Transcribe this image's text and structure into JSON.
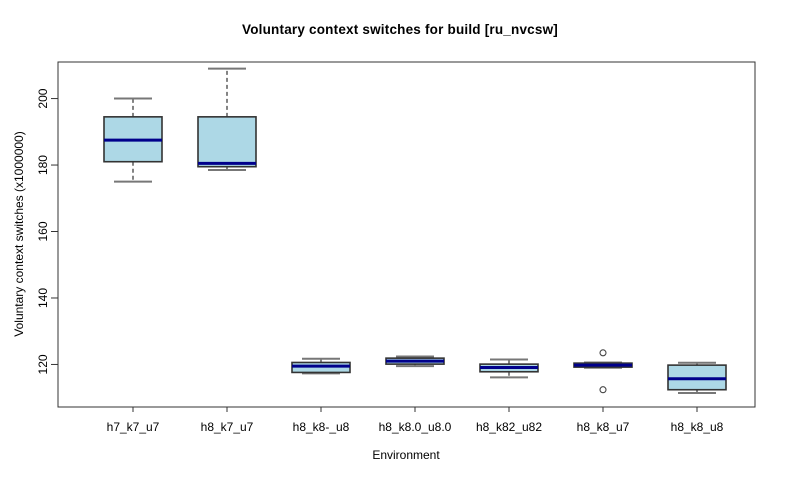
{
  "chart_data": {
    "type": "boxplot",
    "title": "Voluntary context switches for build [ru_nvcsw]",
    "xlabel": "Environment",
    "ylabel": "Voluntary context switches (x1000000)",
    "y_ticks": [
      120,
      140,
      160,
      180,
      200
    ],
    "ylim": [
      107.2,
      211
    ],
    "grid": false,
    "legend": "none",
    "categories": [
      "h7_k7_u7",
      "h8_k7_u7",
      "h8_k8-_u8",
      "h8_k8.0_u8.0",
      "h8_k82_u82",
      "h8_k8_u7",
      "h8_k8_u8"
    ],
    "boxes": [
      {
        "category": "h7_k7_u7",
        "whisker_low": 175.0,
        "q1": 181.0,
        "median": 187.5,
        "q3": 194.5,
        "whisker_high": 200.0,
        "outliers": []
      },
      {
        "category": "h8_k7_u7",
        "whisker_low": 178.5,
        "q1": 179.5,
        "median": 180.5,
        "q3": 194.5,
        "whisker_high": 209.0,
        "outliers": []
      },
      {
        "category": "h8_k8-_u8",
        "whisker_low": 117.3,
        "q1": 117.6,
        "median": 119.5,
        "q3": 120.6,
        "whisker_high": 121.7,
        "outliers": []
      },
      {
        "category": "h8_k8.0_u8.0",
        "whisker_low": 119.5,
        "q1": 120.1,
        "median": 121.0,
        "q3": 121.9,
        "whisker_high": 122.4,
        "outliers": []
      },
      {
        "category": "h8_k82_u82",
        "whisker_low": 116.1,
        "q1": 117.8,
        "median": 119.1,
        "q3": 120.1,
        "whisker_high": 121.5,
        "outliers": []
      },
      {
        "category": "h8_k8_u7",
        "whisker_low": 119.0,
        "q1": 119.2,
        "median": 119.8,
        "q3": 120.4,
        "whisker_high": 120.6,
        "outliers": [
          123.5,
          112.4
        ]
      },
      {
        "category": "h8_k8_u8",
        "whisker_low": 111.4,
        "q1": 112.4,
        "median": 115.7,
        "q3": 119.8,
        "whisker_high": 120.5,
        "outliers": []
      }
    ],
    "colors": {
      "box_fill": "#ADD8E6",
      "median": "#00008B",
      "box_border": "#333333",
      "whisker": "#333333",
      "staple": "#777777",
      "outlier": "#444444",
      "frame": "#333333",
      "background": "#ffffff"
    }
  }
}
